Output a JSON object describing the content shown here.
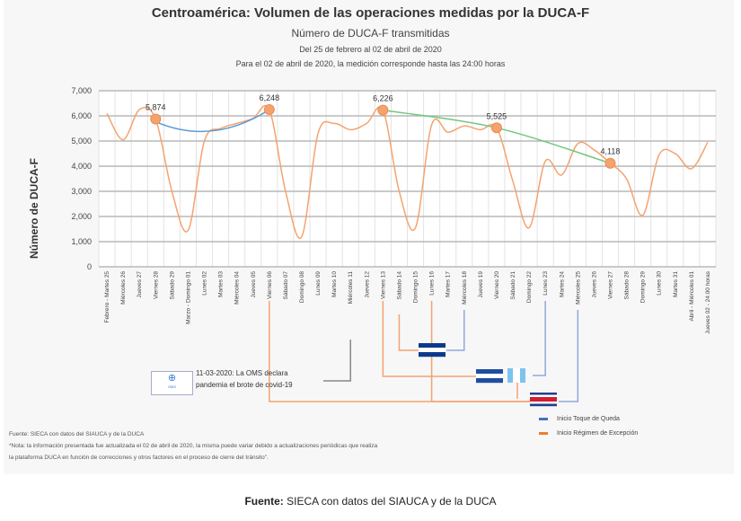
{
  "chart_data": {
    "type": "line",
    "title": "Centroamérica: Volumen de las operaciones medidas por la DUCA-F",
    "subtitle": "Número de DUCA-F transmitidas",
    "notes": [
      "Del 25 de febrero al 02 de abril de 2020",
      "Para el 02 de abril de 2020, la medición corresponde hasta las 24:00 horas"
    ],
    "ylabel": "Número de  DUCA-F",
    "xlabel": "",
    "ylim": [
      0,
      7000
    ],
    "yticks": [
      "0",
      "1,000",
      "2,000",
      "3,000",
      "4,000",
      "5,000",
      "6,000",
      "7,000"
    ],
    "grid": true,
    "categories": [
      "Febrero - Martes 25",
      "Miércoles 26",
      "Jueves 27",
      "Viernes 28",
      "Sábado 29",
      "Marzo - Domingo 01",
      "Lunes 02",
      "Martes 03",
      "Miércoles 04",
      "Jueves 05",
      "Viernes 06",
      "Sábado 07",
      "Domingo 08",
      "Lunes 09",
      "Martes 10",
      "Miércoles 11",
      "Jueves 12",
      "Viernes 13",
      "Sábado 14",
      "Domingo 15",
      "Lunes 16",
      "Martes 17",
      "Miércoles 18",
      "Jueves 19",
      "Viernes 20",
      "Sábado 21",
      "Domingo 22",
      "Lunes 23",
      "Martes 24",
      "Miércoles 25",
      "Jueves 26",
      "Viernes 27",
      "Sábado 28",
      "Domingo 29",
      "Lunes 30",
      "Martes 31",
      "Abril - Miércoles 01",
      "Jueves 02 - 24:00 horas"
    ],
    "values": [
      6100,
      5050,
      6250,
      5874,
      3000,
      1450,
      5000,
      5500,
      5700,
      5900,
      6248,
      3000,
      1200,
      5300,
      5700,
      5450,
      5700,
      6226,
      3000,
      1550,
      5650,
      5350,
      5600,
      5450,
      5525,
      3400,
      1550,
      4200,
      3650,
      4900,
      4650,
      4118,
      3500,
      2050,
      4450,
      4500,
      3900,
      4950
    ],
    "series_color": "#f4a36f",
    "highlighted": [
      {
        "category": "Viernes 28",
        "value": 5874,
        "label": "5,874"
      },
      {
        "category": "Viernes 06",
        "value": 6248,
        "label": "6,248"
      },
      {
        "category": "Viernes 13",
        "value": 6226,
        "label": "6,226"
      },
      {
        "category": "Viernes 20",
        "value": 5525,
        "label": "5,525"
      },
      {
        "category": "Viernes 27",
        "value": 4118,
        "label": "4,118"
      }
    ],
    "trendlines": [
      {
        "from": "Viernes 28",
        "to": "Viernes 06",
        "color": "#5b9bd5"
      },
      {
        "from": "Viernes 13",
        "to": "Viernes 27",
        "color": "#70c77f"
      }
    ],
    "legend": [
      {
        "label": "Inicio Toque de Queda",
        "color": "#4472c4"
      },
      {
        "label": "Inicio Régimen de Excepción",
        "color": "#ed7d31"
      }
    ],
    "legend_position": "bottom-right"
  },
  "annotation": {
    "who_text_1": "11-03-2020: La OMS declara",
    "who_text_2": "pandemia el brote de covid-19",
    "who_logo": "Organización Mundial de la Salud"
  },
  "footnotes": [
    "Fuente: SIECA con datos del SIAUCA y de la DUCA",
    "*Nota: la información presentada fue actualizada el 02 de abril de 2020, la misma puede variar debido a actualizaciones periódicas que realiza",
    "la plataforma DUCA en función de correcciones y otros factores en el proceso de cierre del tránsito\"."
  ],
  "caption": {
    "bold": "Fuente:",
    "text": " SIECA con datos del SIAUCA y de la DUCA"
  }
}
